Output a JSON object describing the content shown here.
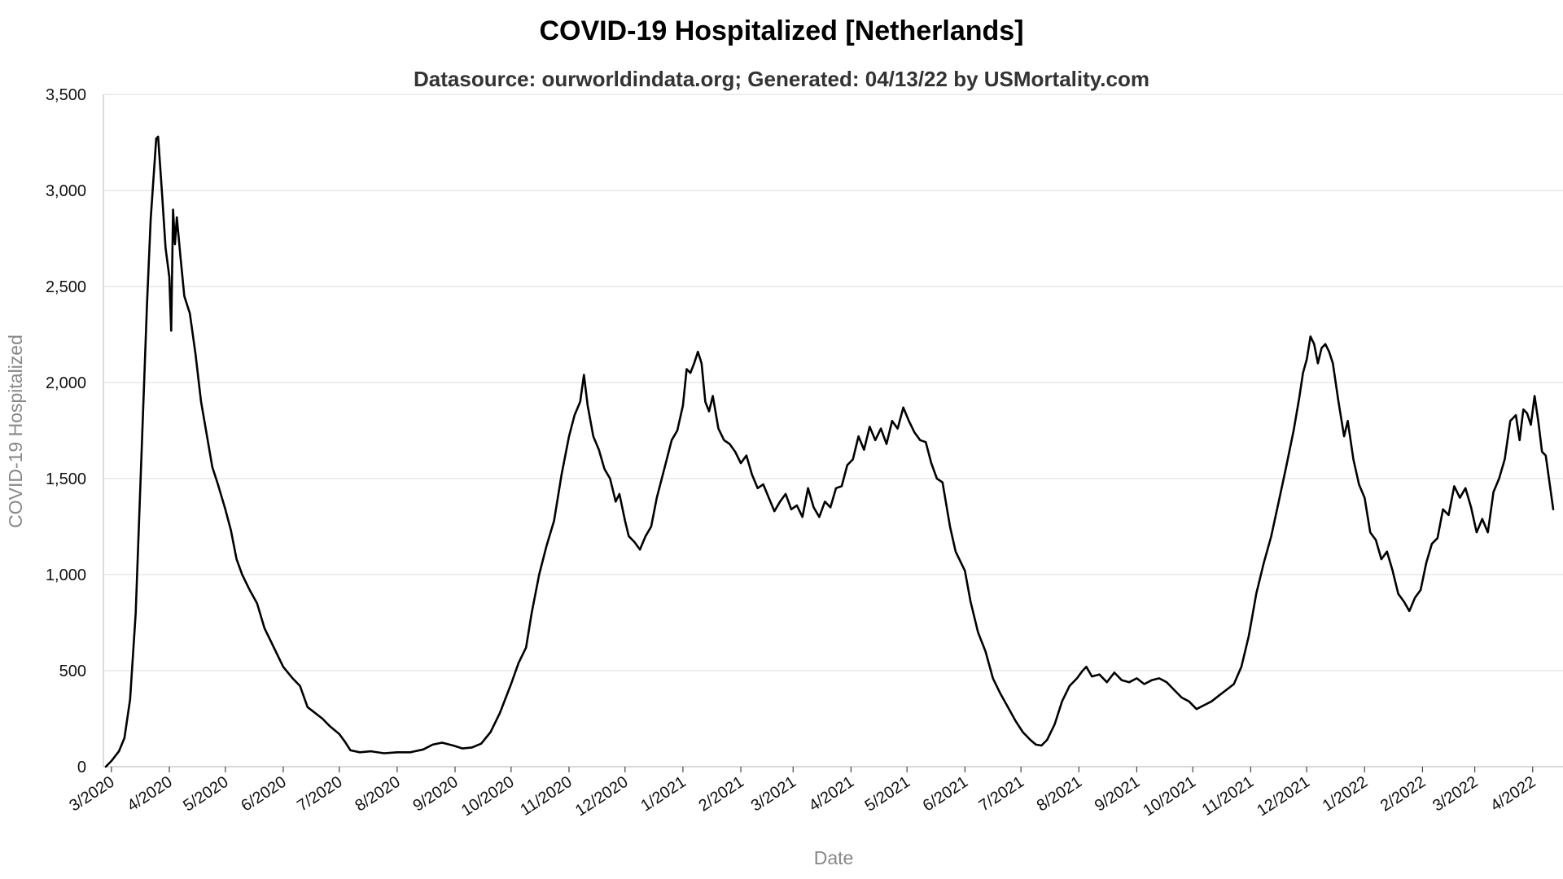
{
  "chart_data": {
    "type": "line",
    "title": "COVID-19 Hospitalized [Netherlands]",
    "subtitle": "Datasource: ourworldindata.org; Generated: 04/13/22 by USMortality.com",
    "xlabel": "Date",
    "ylabel": "COVID-19 Hospitalized",
    "ylim": [
      0,
      3500
    ],
    "y_ticks": [
      0,
      500,
      1000,
      1500,
      2000,
      2500,
      3000,
      3500
    ],
    "y_tick_labels": [
      "0",
      "500",
      "1,000",
      "1,500",
      "2,000",
      "2,500",
      "3,000",
      "3,500"
    ],
    "xlim": [
      "2020-02-27",
      "2022-04-12"
    ],
    "x_ticks": [
      "2020-03-01",
      "2020-04-01",
      "2020-05-01",
      "2020-06-01",
      "2020-07-01",
      "2020-08-01",
      "2020-09-01",
      "2020-10-01",
      "2020-11-01",
      "2020-12-01",
      "2021-01-01",
      "2021-02-01",
      "2021-03-01",
      "2021-04-01",
      "2021-05-01",
      "2021-06-01",
      "2021-07-01",
      "2021-08-01",
      "2021-09-01",
      "2021-10-01",
      "2021-11-01",
      "2021-12-01",
      "2022-01-01",
      "2022-02-01",
      "2022-03-01",
      "2022-04-01"
    ],
    "x_tick_labels": [
      "3/2020",
      "4/2020",
      "5/2020",
      "6/2020",
      "7/2020",
      "8/2020",
      "9/2020",
      "10/2020",
      "11/2020",
      "12/2020",
      "1/2021",
      "2/2021",
      "3/2021",
      "4/2021",
      "5/2021",
      "6/2021",
      "7/2021",
      "8/2021",
      "9/2021",
      "10/2021",
      "11/2021",
      "12/2021",
      "1/2022",
      "2/2022",
      "3/2022",
      "4/2022"
    ],
    "grid": true,
    "series": [
      {
        "color": "#000000",
        "points": [
          [
            "2020-02-27",
            0
          ],
          [
            "2020-03-01",
            30
          ],
          [
            "2020-03-05",
            80
          ],
          [
            "2020-03-08",
            150
          ],
          [
            "2020-03-11",
            350
          ],
          [
            "2020-03-14",
            800
          ],
          [
            "2020-03-17",
            1600
          ],
          [
            "2020-03-20",
            2400
          ],
          [
            "2020-03-22",
            2850
          ],
          [
            "2020-03-25",
            3270
          ],
          [
            "2020-03-26",
            3280
          ],
          [
            "2020-03-28",
            3000
          ],
          [
            "2020-03-30",
            2700
          ],
          [
            "2020-04-01",
            2550
          ],
          [
            "2020-04-02",
            2270
          ],
          [
            "2020-04-03",
            2900
          ],
          [
            "2020-04-04",
            2720
          ],
          [
            "2020-04-05",
            2860
          ],
          [
            "2020-04-07",
            2650
          ],
          [
            "2020-04-09",
            2450
          ],
          [
            "2020-04-12",
            2360
          ],
          [
            "2020-04-15",
            2150
          ],
          [
            "2020-04-18",
            1900
          ],
          [
            "2020-04-21",
            1730
          ],
          [
            "2020-04-24",
            1560
          ],
          [
            "2020-04-27",
            1470
          ],
          [
            "2020-05-01",
            1340
          ],
          [
            "2020-05-04",
            1230
          ],
          [
            "2020-05-07",
            1080
          ],
          [
            "2020-05-10",
            1000
          ],
          [
            "2020-05-14",
            920
          ],
          [
            "2020-05-18",
            850
          ],
          [
            "2020-05-22",
            720
          ],
          [
            "2020-05-26",
            640
          ],
          [
            "2020-06-01",
            520
          ],
          [
            "2020-06-06",
            460
          ],
          [
            "2020-06-10",
            420
          ],
          [
            "2020-06-14",
            310
          ],
          [
            "2020-06-18",
            280
          ],
          [
            "2020-06-22",
            250
          ],
          [
            "2020-06-26",
            210
          ],
          [
            "2020-07-01",
            170
          ],
          [
            "2020-07-04",
            130
          ],
          [
            "2020-07-07",
            85
          ],
          [
            "2020-07-12",
            75
          ],
          [
            "2020-07-18",
            80
          ],
          [
            "2020-07-25",
            70
          ],
          [
            "2020-08-01",
            75
          ],
          [
            "2020-08-08",
            75
          ],
          [
            "2020-08-15",
            90
          ],
          [
            "2020-08-20",
            115
          ],
          [
            "2020-08-25",
            125
          ],
          [
            "2020-08-31",
            110
          ],
          [
            "2020-09-05",
            95
          ],
          [
            "2020-09-10",
            100
          ],
          [
            "2020-09-15",
            120
          ],
          [
            "2020-09-20",
            180
          ],
          [
            "2020-09-25",
            280
          ],
          [
            "2020-10-01",
            430
          ],
          [
            "2020-10-05",
            540
          ],
          [
            "2020-10-09",
            620
          ],
          [
            "2020-10-12",
            800
          ],
          [
            "2020-10-16",
            1000
          ],
          [
            "2020-10-20",
            1150
          ],
          [
            "2020-10-24",
            1280
          ],
          [
            "2020-10-28",
            1520
          ],
          [
            "2020-11-01",
            1720
          ],
          [
            "2020-11-04",
            1830
          ],
          [
            "2020-11-07",
            1900
          ],
          [
            "2020-11-09",
            2040
          ],
          [
            "2020-11-11",
            1880
          ],
          [
            "2020-11-14",
            1720
          ],
          [
            "2020-11-17",
            1650
          ],
          [
            "2020-11-20",
            1550
          ],
          [
            "2020-11-23",
            1500
          ],
          [
            "2020-11-26",
            1380
          ],
          [
            "2020-11-28",
            1420
          ],
          [
            "2020-12-01",
            1280
          ],
          [
            "2020-12-03",
            1200
          ],
          [
            "2020-12-06",
            1170
          ],
          [
            "2020-12-09",
            1130
          ],
          [
            "2020-12-12",
            1200
          ],
          [
            "2020-12-15",
            1250
          ],
          [
            "2020-12-18",
            1400
          ],
          [
            "2020-12-22",
            1550
          ],
          [
            "2020-12-26",
            1700
          ],
          [
            "2020-12-29",
            1750
          ],
          [
            "2021-01-01",
            1880
          ],
          [
            "2021-01-03",
            2070
          ],
          [
            "2021-01-05",
            2050
          ],
          [
            "2021-01-07",
            2100
          ],
          [
            "2021-01-09",
            2160
          ],
          [
            "2021-01-11",
            2100
          ],
          [
            "2021-01-13",
            1900
          ],
          [
            "2021-01-15",
            1850
          ],
          [
            "2021-01-17",
            1930
          ],
          [
            "2021-01-20",
            1760
          ],
          [
            "2021-01-23",
            1700
          ],
          [
            "2021-01-26",
            1680
          ],
          [
            "2021-01-29",
            1640
          ],
          [
            "2021-02-01",
            1580
          ],
          [
            "2021-02-04",
            1620
          ],
          [
            "2021-02-07",
            1520
          ],
          [
            "2021-02-10",
            1450
          ],
          [
            "2021-02-13",
            1470
          ],
          [
            "2021-02-16",
            1400
          ],
          [
            "2021-02-19",
            1330
          ],
          [
            "2021-02-22",
            1380
          ],
          [
            "2021-02-25",
            1420
          ],
          [
            "2021-02-28",
            1340
          ],
          [
            "2021-03-03",
            1360
          ],
          [
            "2021-03-06",
            1300
          ],
          [
            "2021-03-09",
            1450
          ],
          [
            "2021-03-12",
            1350
          ],
          [
            "2021-03-15",
            1300
          ],
          [
            "2021-03-18",
            1380
          ],
          [
            "2021-03-21",
            1350
          ],
          [
            "2021-03-24",
            1450
          ],
          [
            "2021-03-27",
            1460
          ],
          [
            "2021-03-30",
            1570
          ],
          [
            "2021-04-02",
            1600
          ],
          [
            "2021-04-05",
            1720
          ],
          [
            "2021-04-08",
            1650
          ],
          [
            "2021-04-11",
            1770
          ],
          [
            "2021-04-14",
            1700
          ],
          [
            "2021-04-17",
            1760
          ],
          [
            "2021-04-20",
            1680
          ],
          [
            "2021-04-23",
            1800
          ],
          [
            "2021-04-26",
            1760
          ],
          [
            "2021-04-29",
            1870
          ],
          [
            "2021-05-02",
            1800
          ],
          [
            "2021-05-05",
            1740
          ],
          [
            "2021-05-08",
            1700
          ],
          [
            "2021-05-11",
            1690
          ],
          [
            "2021-05-14",
            1580
          ],
          [
            "2021-05-17",
            1500
          ],
          [
            "2021-05-20",
            1480
          ],
          [
            "2021-05-24",
            1250
          ],
          [
            "2021-05-27",
            1120
          ],
          [
            "2021-06-01",
            1020
          ],
          [
            "2021-06-04",
            860
          ],
          [
            "2021-06-08",
            700
          ],
          [
            "2021-06-12",
            600
          ],
          [
            "2021-06-16",
            460
          ],
          [
            "2021-06-20",
            380
          ],
          [
            "2021-06-24",
            310
          ],
          [
            "2021-06-28",
            240
          ],
          [
            "2021-07-02",
            180
          ],
          [
            "2021-07-06",
            140
          ],
          [
            "2021-07-09",
            115
          ],
          [
            "2021-07-12",
            110
          ],
          [
            "2021-07-15",
            140
          ],
          [
            "2021-07-19",
            220
          ],
          [
            "2021-07-23",
            340
          ],
          [
            "2021-07-27",
            420
          ],
          [
            "2021-07-31",
            460
          ],
          [
            "2021-08-03",
            500
          ],
          [
            "2021-08-05",
            520
          ],
          [
            "2021-08-08",
            470
          ],
          [
            "2021-08-12",
            480
          ],
          [
            "2021-08-16",
            440
          ],
          [
            "2021-08-20",
            490
          ],
          [
            "2021-08-24",
            450
          ],
          [
            "2021-08-28",
            440
          ],
          [
            "2021-09-01",
            460
          ],
          [
            "2021-09-05",
            430
          ],
          [
            "2021-09-09",
            450
          ],
          [
            "2021-09-13",
            460
          ],
          [
            "2021-09-17",
            440
          ],
          [
            "2021-09-21",
            400
          ],
          [
            "2021-09-25",
            360
          ],
          [
            "2021-09-29",
            340
          ],
          [
            "2021-10-03",
            300
          ],
          [
            "2021-10-07",
            320
          ],
          [
            "2021-10-11",
            340
          ],
          [
            "2021-10-15",
            370
          ],
          [
            "2021-10-19",
            400
          ],
          [
            "2021-10-23",
            430
          ],
          [
            "2021-10-27",
            520
          ],
          [
            "2021-10-31",
            680
          ],
          [
            "2021-11-04",
            900
          ],
          [
            "2021-11-08",
            1060
          ],
          [
            "2021-11-12",
            1200
          ],
          [
            "2021-11-16",
            1380
          ],
          [
            "2021-11-20",
            1560
          ],
          [
            "2021-11-24",
            1750
          ],
          [
            "2021-11-27",
            1920
          ],
          [
            "2021-11-29",
            2050
          ],
          [
            "2021-12-01",
            2120
          ],
          [
            "2021-12-03",
            2240
          ],
          [
            "2021-12-05",
            2200
          ],
          [
            "2021-12-07",
            2100
          ],
          [
            "2021-12-09",
            2180
          ],
          [
            "2021-12-11",
            2200
          ],
          [
            "2021-12-13",
            2160
          ],
          [
            "2021-12-15",
            2100
          ],
          [
            "2021-12-18",
            1900
          ],
          [
            "2021-12-21",
            1720
          ],
          [
            "2021-12-23",
            1800
          ],
          [
            "2021-12-26",
            1600
          ],
          [
            "2021-12-29",
            1470
          ],
          [
            "2022-01-01",
            1400
          ],
          [
            "2022-01-04",
            1220
          ],
          [
            "2022-01-07",
            1180
          ],
          [
            "2022-01-10",
            1080
          ],
          [
            "2022-01-13",
            1120
          ],
          [
            "2022-01-16",
            1020
          ],
          [
            "2022-01-19",
            900
          ],
          [
            "2022-01-22",
            860
          ],
          [
            "2022-01-25",
            810
          ],
          [
            "2022-01-28",
            880
          ],
          [
            "2022-01-31",
            920
          ],
          [
            "2022-02-03",
            1060
          ],
          [
            "2022-02-06",
            1160
          ],
          [
            "2022-02-09",
            1190
          ],
          [
            "2022-02-12",
            1340
          ],
          [
            "2022-02-15",
            1310
          ],
          [
            "2022-02-18",
            1460
          ],
          [
            "2022-02-21",
            1400
          ],
          [
            "2022-02-24",
            1450
          ],
          [
            "2022-02-27",
            1350
          ],
          [
            "2022-03-02",
            1220
          ],
          [
            "2022-03-05",
            1290
          ],
          [
            "2022-03-08",
            1220
          ],
          [
            "2022-03-11",
            1430
          ],
          [
            "2022-03-14",
            1500
          ],
          [
            "2022-03-17",
            1600
          ],
          [
            "2022-03-20",
            1800
          ],
          [
            "2022-03-23",
            1830
          ],
          [
            "2022-03-25",
            1700
          ],
          [
            "2022-03-27",
            1860
          ],
          [
            "2022-03-29",
            1840
          ],
          [
            "2022-03-31",
            1780
          ],
          [
            "2022-04-02",
            1930
          ],
          [
            "2022-04-04",
            1800
          ],
          [
            "2022-04-06",
            1640
          ],
          [
            "2022-04-08",
            1620
          ],
          [
            "2022-04-10",
            1480
          ],
          [
            "2022-04-12",
            1340
          ]
        ]
      }
    ]
  }
}
